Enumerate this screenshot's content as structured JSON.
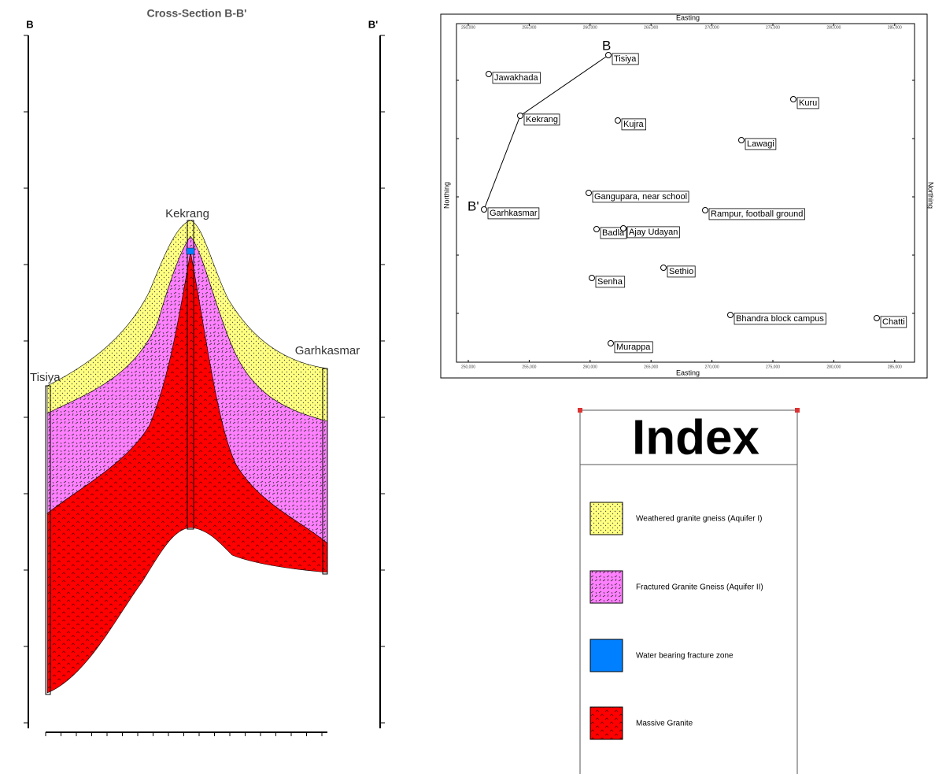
{
  "cross_section": {
    "title": "Cross-Section B-B'",
    "start_label": "B",
    "end_label": "B'",
    "wells": [
      "Tisiya",
      "Kekrang",
      "Garhkasmar"
    ]
  },
  "map": {
    "x_label": "Easting",
    "y_label": "Northing",
    "x_ticks": [
      "250,000",
      "255,000",
      "260,000",
      "265,000",
      "270,000",
      "275,000",
      "280,000",
      "285,000"
    ],
    "section_start": "B",
    "section_end": "B'",
    "stations": [
      "Tisiya",
      "Jawakhada",
      "Kekrang",
      "Kujra",
      "Kuru",
      "Lawagi",
      "Gangupara, near school",
      "Rampur, football ground",
      "Garhkasmar",
      "Badla",
      "Ajay  Udayan",
      "Sethio",
      "Senha",
      "Bhandra block campus",
      "Chatti",
      "Murappa"
    ]
  },
  "legend": {
    "title": "Index",
    "items": [
      "Weathered granite gneiss (Aquifer I)",
      "Fractured Granite Gneiss (Aquifer II)",
      "Water bearing fracture zone",
      "Massive Granite"
    ]
  }
}
